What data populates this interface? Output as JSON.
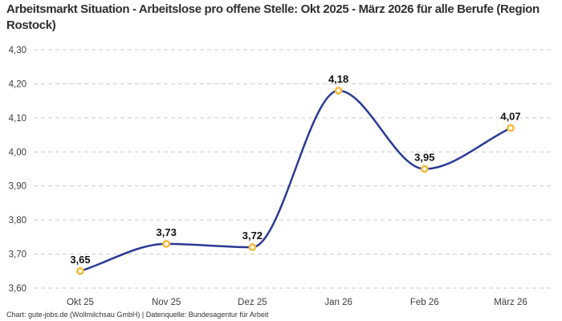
{
  "header": {
    "title": "Arbeitsmarkt Situation - Arbeitslose pro offene Stelle: Okt 2025 - März 2026 für alle Berufe (Region Rostock)"
  },
  "footer": {
    "credit": "Chart: gute-jobs.de (Wollmilchsau GmbH) | Datenquelle: Bundesagentur für Arbeit"
  },
  "chart_data": {
    "type": "line",
    "title": "Arbeitsmarkt Situation - Arbeitslose pro offene Stelle: Okt 2025 - März 2026 für alle Berufe (Region Rostock)",
    "categories": [
      "Okt 25",
      "Nov 25",
      "Dez 25",
      "Jan 26",
      "Feb 26",
      "März 26"
    ],
    "values": [
      3.65,
      3.73,
      3.72,
      4.18,
      3.95,
      4.07
    ],
    "value_labels": [
      "3,65",
      "3,73",
      "3,72",
      "4,18",
      "3,95",
      "4,07"
    ],
    "xlabel": "",
    "ylabel": "",
    "ylim": [
      3.6,
      4.3
    ],
    "y_tick_step": 0.1,
    "y_tick_labels": [
      "4,30",
      "4,20",
      "4,10",
      "4,00",
      "3,90",
      "3,80",
      "3,70",
      "3,60"
    ],
    "grid": "horizontal-dashed",
    "legend": "none",
    "line_style": "smooth-monotone",
    "colors": {
      "line": "#2b3a94",
      "marker_ring": "#f4bc3d",
      "marker_fill": "#ffffff",
      "gridline": "#c9c9c9",
      "tick_text": "#3d3d3d",
      "data_label_text": "#111111",
      "title_text": "#2f2f2f",
      "footer_text": "#333333",
      "background": "#ffffff"
    }
  }
}
